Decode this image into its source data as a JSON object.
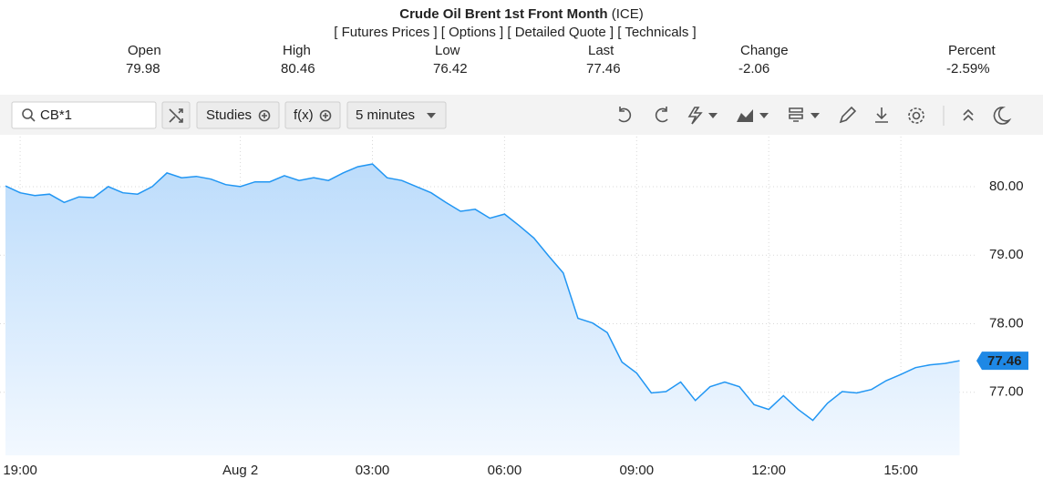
{
  "header": {
    "title": "Crude Oil Brent 1st Front Month",
    "exchange": "(ICE)",
    "links": [
      "Futures Prices",
      "Options",
      "Detailed Quote",
      "Technicals"
    ],
    "quote": [
      {
        "label": "Open",
        "value": "79.98"
      },
      {
        "label": "High",
        "value": "80.46"
      },
      {
        "label": "Low",
        "value": "76.42"
      },
      {
        "label": "Last",
        "value": "77.46"
      },
      {
        "label": "Change",
        "value": "-2.06"
      },
      {
        "label": "Percent",
        "value": "-2.59%"
      }
    ]
  },
  "toolbar": {
    "search": "CB*1",
    "studies": "Studies",
    "fx": "f(x)",
    "interval": "5 minutes"
  },
  "chart_data": {
    "type": "line",
    "color": "#2196f3",
    "grid": true,
    "categories": [
      null,
      "19:00",
      null,
      null,
      null,
      null,
      null,
      null,
      null,
      null,
      null,
      null,
      null,
      null,
      null,
      null,
      "Aug 2",
      null,
      null,
      null,
      null,
      null,
      null,
      null,
      null,
      "03:00",
      null,
      null,
      null,
      null,
      null,
      null,
      null,
      null,
      "06:00",
      null,
      null,
      null,
      null,
      null,
      null,
      null,
      null,
      "09:00",
      null,
      null,
      null,
      null,
      null,
      null,
      null,
      null,
      "12:00",
      null,
      null,
      null,
      null,
      null,
      null,
      null,
      null,
      "15:00",
      null,
      null,
      null,
      null
    ],
    "values": [
      80.01,
      79.91,
      79.87,
      79.89,
      79.77,
      79.85,
      79.84,
      80.0,
      79.91,
      79.89,
      80.0,
      80.2,
      80.13,
      80.15,
      80.11,
      80.03,
      80.0,
      80.07,
      80.07,
      80.16,
      80.09,
      80.13,
      80.09,
      80.2,
      80.29,
      80.33,
      80.13,
      80.09,
      80.0,
      79.91,
      79.77,
      79.64,
      79.67,
      79.54,
      79.6,
      79.43,
      79.25,
      78.99,
      78.74,
      78.08,
      78.01,
      77.87,
      77.44,
      77.28,
      76.99,
      77.01,
      77.15,
      76.88,
      77.08,
      77.15,
      77.08,
      76.82,
      76.75,
      76.95,
      76.75,
      76.59,
      76.84,
      77.01,
      76.99,
      77.04,
      77.17,
      77.26,
      77.36,
      77.4,
      77.42,
      77.46
    ],
    "ylim": [
      76.08,
      80.73
    ],
    "yticks": [
      {
        "value": 77,
        "label": "77.00"
      },
      {
        "value": 78,
        "label": "78.00"
      },
      {
        "value": 79,
        "label": "79.00"
      },
      {
        "value": 80,
        "label": "80.00"
      }
    ]
  }
}
